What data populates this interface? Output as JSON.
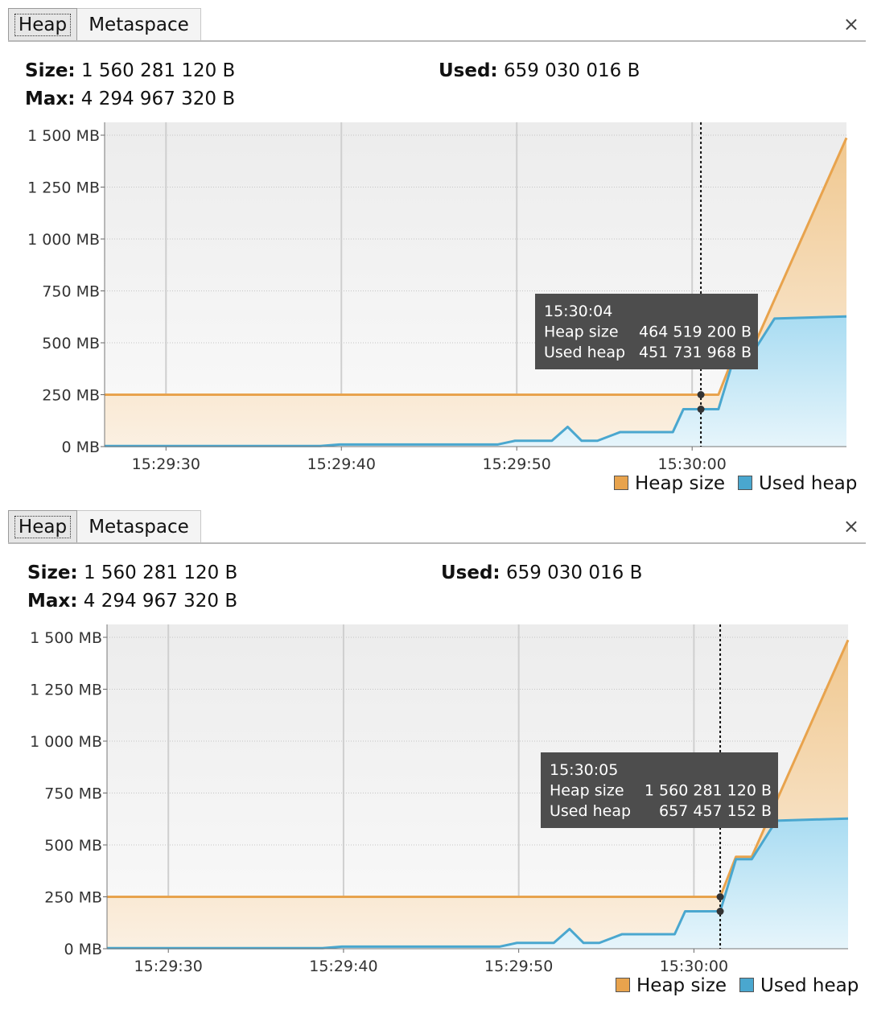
{
  "panels": [
    {
      "tabs": {
        "heap": "Heap",
        "metaspace": "Metaspace"
      },
      "close": "×",
      "info": {
        "size_label": "Size:",
        "size_value": "1 560 281 120 B",
        "used_label": "Used:",
        "used_value": "659 030 016 B",
        "max_label": "Max:",
        "max_value": "4 294 967 320 B"
      },
      "tooltip": {
        "time": "15:30:04",
        "heap_label": "Heap size",
        "heap_value": "464 519 200 B",
        "used_label": "Used heap",
        "used_value": "451 731 968 B"
      },
      "cursor_time_s": 34,
      "legend": {
        "heap": "Heap size",
        "used": "Used heap"
      }
    },
    {
      "tabs": {
        "heap": "Heap",
        "metaspace": "Metaspace"
      },
      "close": "×",
      "info": {
        "size_label": "Size:",
        "size_value": "1 560 281 120 B",
        "used_label": "Used:",
        "used_value": "659 030 016 B",
        "max_label": "Max:",
        "max_value": "4 294 967 320 B"
      },
      "tooltip": {
        "time": "15:30:05",
        "heap_label": "Heap size",
        "heap_value": "1 560 281 120 B",
        "used_label": "Used heap",
        "used_value": "657 457 152 B"
      },
      "cursor_time_s": 35,
      "legend": {
        "heap": "Heap size",
        "used": "Used heap"
      }
    }
  ],
  "colors": {
    "heap": "#e8a34d",
    "used": "#4aa7cf",
    "heap_fill": "#f7dcb8",
    "used_fill": "#cdeaf7",
    "tooltip_bg": "#4d4d4d"
  },
  "chart_data": {
    "type": "area",
    "xlabel": "",
    "ylabel": "",
    "x_unit": "seconds after 15:29:26",
    "ylim": [
      0,
      1500
    ],
    "y_ticks": [
      "0 MB",
      "250 MB",
      "500 MB",
      "750 MB",
      "1 000 MB",
      "1 250 MB",
      "1 500 MB"
    ],
    "y_tick_values": [
      0,
      250,
      500,
      750,
      1000,
      1250,
      1500
    ],
    "x_ticks": [
      "15:29:30",
      "15:29:40",
      "15:29:50",
      "15:30:00"
    ],
    "x_tick_values": [
      3.5,
      13.5,
      23.5,
      33.5
    ],
    "x_range": [
      0,
      42.3
    ],
    "grid": true,
    "series": [
      {
        "name": "Heap size",
        "x": [
          0,
          35,
          35.9,
          36.8,
          42.3
        ],
        "y": [
          250,
          250,
          443,
          443,
          1487
        ]
      },
      {
        "name": "Used heap",
        "x": [
          0,
          12.3,
          13.4,
          22.4,
          23.4,
          25.5,
          26.4,
          27.2,
          28.1,
          29.4,
          30.4,
          31.5,
          32.4,
          33.0,
          34.7,
          35.0,
          35.9,
          36.8,
          38.2,
          42.3
        ],
        "y": [
          3,
          3,
          10,
          10,
          28,
          28,
          95,
          28,
          28,
          70,
          70,
          70,
          70,
          180,
          180,
          180,
          431,
          431,
          617,
          627
        ]
      }
    ],
    "legend": "bottom-right"
  }
}
